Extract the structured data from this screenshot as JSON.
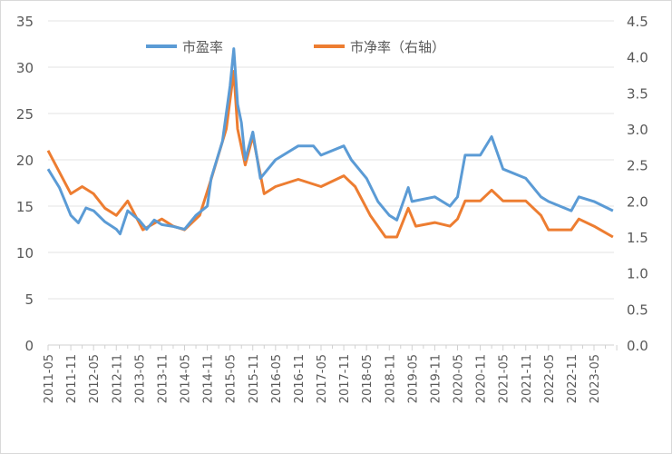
{
  "chart_data": {
    "type": "line",
    "title": "",
    "legend_position": "top",
    "grid": true,
    "y_left": {
      "range": [
        0,
        35
      ],
      "ticks": [
        "0",
        "5",
        "10",
        "15",
        "20",
        "25",
        "30",
        "35"
      ]
    },
    "y_right": {
      "range": [
        0,
        4.5
      ],
      "ticks": [
        "0.0",
        "0.5",
        "1.0",
        "1.5",
        "2.0",
        "2.5",
        "3.0",
        "3.5",
        "4.0",
        "4.5"
      ]
    },
    "x_ticks": [
      "2011-05",
      "2011-11",
      "2012-05",
      "2012-11",
      "2013-05",
      "2013-11",
      "2014-05",
      "2014-11",
      "2015-05",
      "2015-11",
      "2016-05",
      "2016-11",
      "2017-05",
      "2017-11",
      "2018-05",
      "2018-11",
      "2019-05",
      "2019-11",
      "2020-05",
      "2020-11",
      "2021-05",
      "2021-11",
      "2022-05",
      "2022-11",
      "2023-05"
    ],
    "series": [
      {
        "name": "市盈率",
        "axis": "left",
        "color": "#5b9bd5",
        "points": [
          [
            "2011-05",
            19
          ],
          [
            "2011-08",
            17
          ],
          [
            "2011-11",
            14
          ],
          [
            "2012-01",
            13.2
          ],
          [
            "2012-03",
            14.8
          ],
          [
            "2012-05",
            14.5
          ],
          [
            "2012-08",
            13.3
          ],
          [
            "2012-11",
            12.5
          ],
          [
            "2012-12",
            12
          ],
          [
            "2013-02",
            14.5
          ],
          [
            "2013-05",
            13.5
          ],
          [
            "2013-07",
            12.5
          ],
          [
            "2013-09",
            13.5
          ],
          [
            "2013-11",
            13
          ],
          [
            "2014-02",
            12.8
          ],
          [
            "2014-05",
            12.5
          ],
          [
            "2014-08",
            14
          ],
          [
            "2014-11",
            15
          ],
          [
            "2014-12",
            18
          ],
          [
            "2015-03",
            22
          ],
          [
            "2015-05",
            28
          ],
          [
            "2015-06",
            32
          ],
          [
            "2015-07",
            26
          ],
          [
            "2015-08",
            24
          ],
          [
            "2015-09",
            20
          ],
          [
            "2015-11",
            23
          ],
          [
            "2016-01",
            18
          ],
          [
            "2016-05",
            20
          ],
          [
            "2016-11",
            21.5
          ],
          [
            "2017-03",
            21.5
          ],
          [
            "2017-05",
            20.5
          ],
          [
            "2017-11",
            21.5
          ],
          [
            "2018-01",
            20
          ],
          [
            "2018-05",
            18
          ],
          [
            "2018-08",
            15.5
          ],
          [
            "2018-11",
            14
          ],
          [
            "2019-01",
            13.5
          ],
          [
            "2019-04",
            17
          ],
          [
            "2019-05",
            15.5
          ],
          [
            "2019-11",
            16
          ],
          [
            "2020-03",
            15
          ],
          [
            "2020-05",
            16
          ],
          [
            "2020-07",
            20.5
          ],
          [
            "2020-11",
            20.5
          ],
          [
            "2021-02",
            22.5
          ],
          [
            "2021-05",
            19
          ],
          [
            "2021-11",
            18
          ],
          [
            "2022-03",
            16
          ],
          [
            "2022-05",
            15.5
          ],
          [
            "2022-11",
            14.5
          ],
          [
            "2023-01",
            16
          ],
          [
            "2023-05",
            15.5
          ],
          [
            "2023-10",
            14.5
          ]
        ]
      },
      {
        "name": "市净率（右轴）",
        "axis": "right",
        "color": "#ed7d31",
        "points": [
          [
            "2011-05",
            2.7
          ],
          [
            "2011-08",
            2.4
          ],
          [
            "2011-11",
            2.1
          ],
          [
            "2012-02",
            2.2
          ],
          [
            "2012-05",
            2.1
          ],
          [
            "2012-08",
            1.9
          ],
          [
            "2012-11",
            1.8
          ],
          [
            "2013-02",
            2.0
          ],
          [
            "2013-06",
            1.6
          ],
          [
            "2013-11",
            1.75
          ],
          [
            "2014-02",
            1.65
          ],
          [
            "2014-05",
            1.6
          ],
          [
            "2014-09",
            1.8
          ],
          [
            "2014-12",
            2.3
          ],
          [
            "2015-04",
            3.0
          ],
          [
            "2015-06",
            3.8
          ],
          [
            "2015-07",
            3.0
          ],
          [
            "2015-09",
            2.5
          ],
          [
            "2015-11",
            2.9
          ],
          [
            "2016-02",
            2.1
          ],
          [
            "2016-05",
            2.2
          ],
          [
            "2016-11",
            2.3
          ],
          [
            "2017-05",
            2.2
          ],
          [
            "2017-11",
            2.35
          ],
          [
            "2018-02",
            2.2
          ],
          [
            "2018-06",
            1.8
          ],
          [
            "2018-10",
            1.5
          ],
          [
            "2019-01",
            1.5
          ],
          [
            "2019-04",
            1.9
          ],
          [
            "2019-06",
            1.65
          ],
          [
            "2019-11",
            1.7
          ],
          [
            "2020-03",
            1.65
          ],
          [
            "2020-05",
            1.75
          ],
          [
            "2020-07",
            2.0
          ],
          [
            "2020-11",
            2.0
          ],
          [
            "2021-02",
            2.15
          ],
          [
            "2021-05",
            2.0
          ],
          [
            "2021-11",
            2.0
          ],
          [
            "2022-03",
            1.8
          ],
          [
            "2022-05",
            1.6
          ],
          [
            "2022-11",
            1.6
          ],
          [
            "2023-01",
            1.75
          ],
          [
            "2023-05",
            1.65
          ],
          [
            "2023-10",
            1.5
          ]
        ]
      }
    ]
  }
}
